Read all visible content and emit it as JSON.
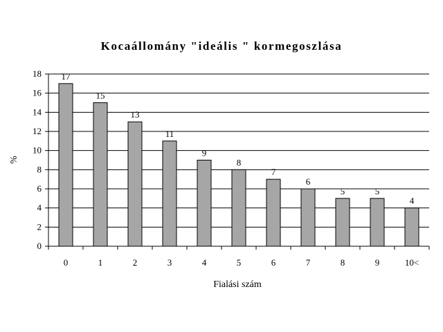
{
  "chart_data": {
    "type": "bar",
    "title": "Kocaállomány \"ideális \" kormegoszlása",
    "xlabel": "Fialási szám",
    "ylabel": "%",
    "categories": [
      "0",
      "1",
      "2",
      "3",
      "4",
      "5",
      "6",
      "7",
      "8",
      "9",
      "10<"
    ],
    "values": [
      17,
      15,
      13,
      11,
      9,
      8,
      7,
      6,
      5,
      5,
      4
    ],
    "ylim": [
      0,
      18
    ],
    "yticks": [
      0,
      2,
      4,
      6,
      8,
      10,
      12,
      14,
      16,
      18
    ],
    "grid": true,
    "legend": "none",
    "data_labels": true,
    "bar_color": "#a6a6a6",
    "bar_border_color": "#000000",
    "grid_color": "#000000"
  }
}
